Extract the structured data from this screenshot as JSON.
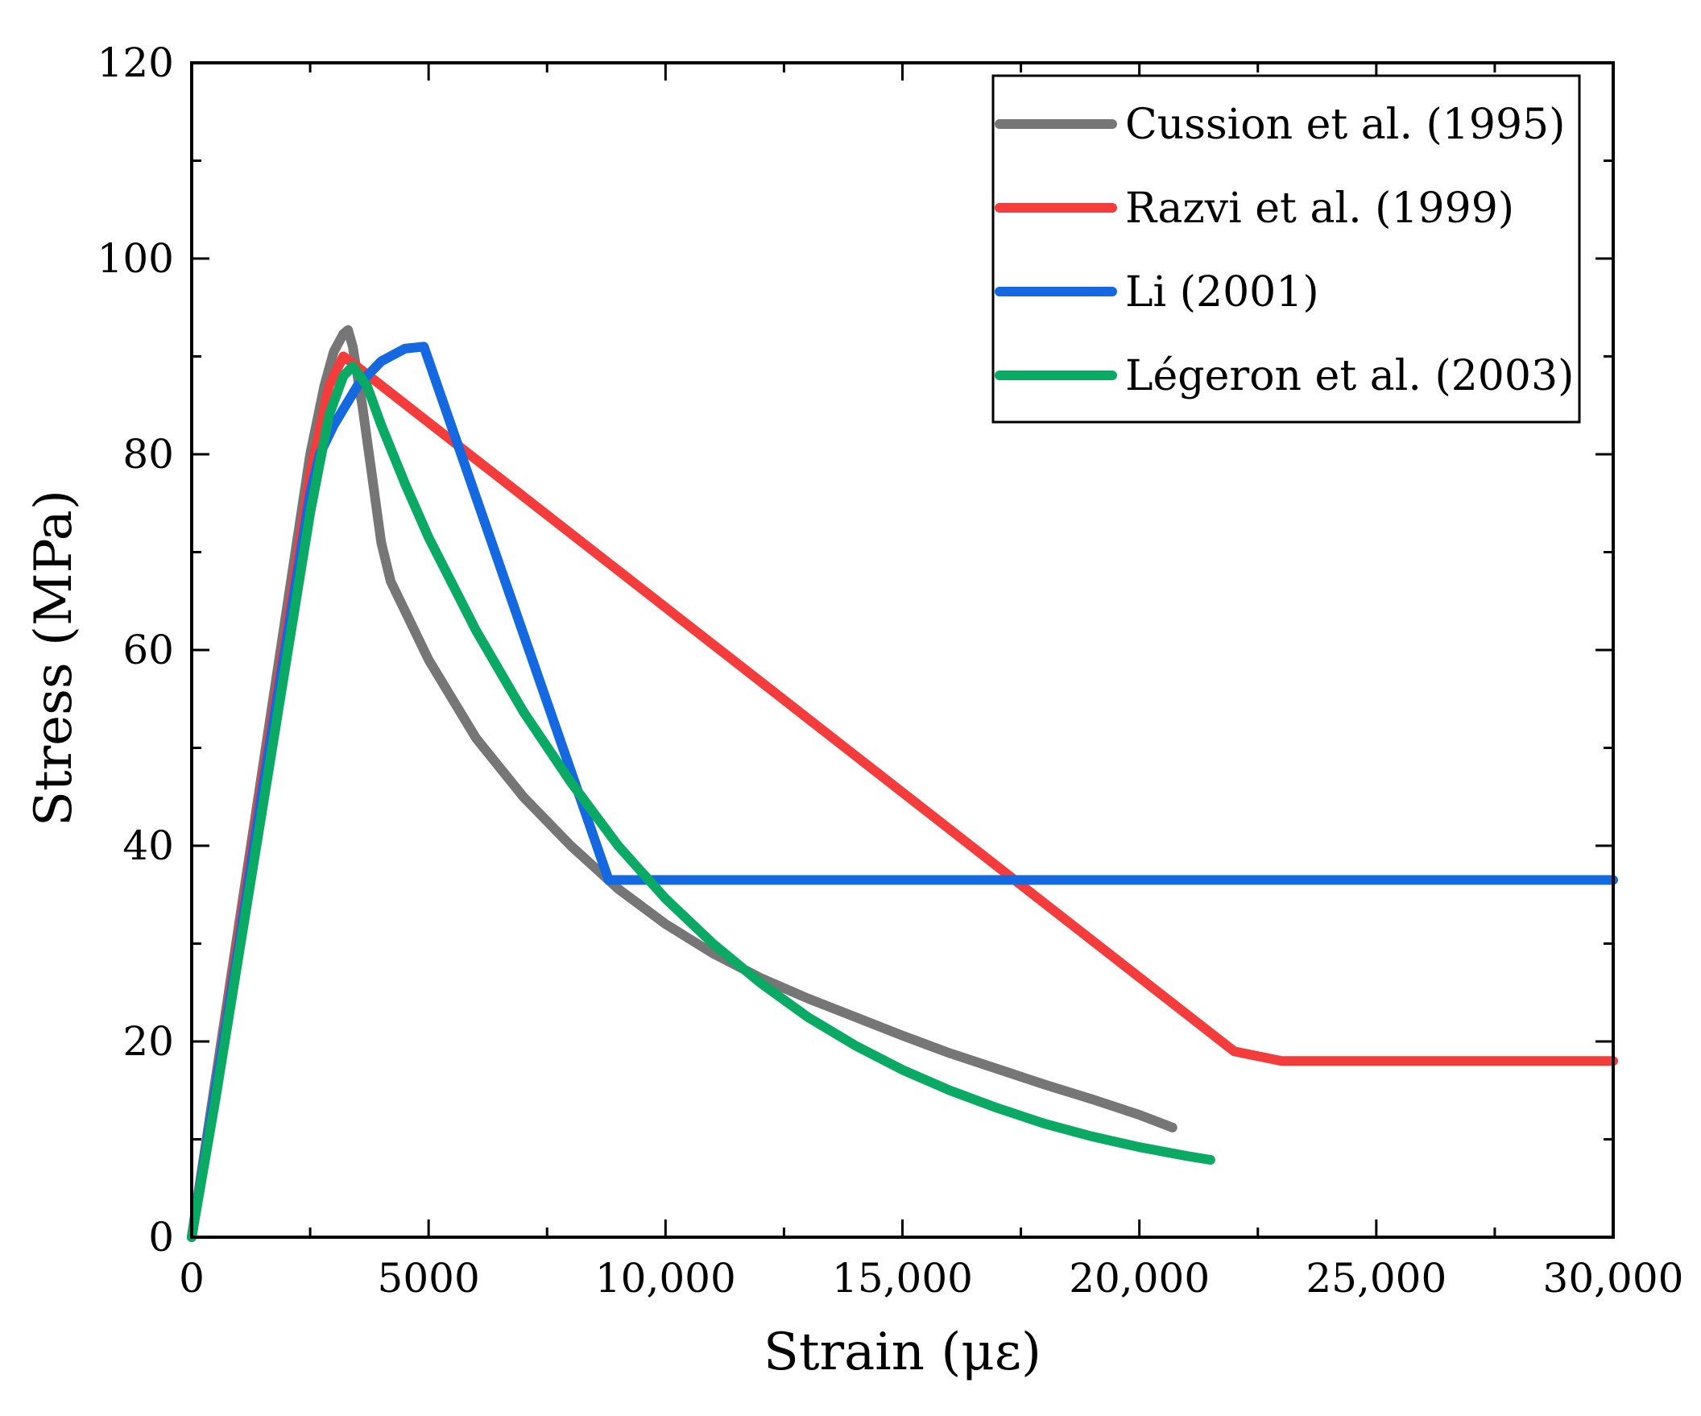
{
  "chart_data": {
    "type": "line",
    "title": "",
    "xlabel": "Strain (με)",
    "ylabel": "Stress (MPa)",
    "xlim": [
      0,
      30000
    ],
    "ylim": [
      0,
      120
    ],
    "x_ticks": [
      0,
      5000,
      10000,
      15000,
      20000,
      25000,
      30000
    ],
    "x_tick_labels": [
      "0",
      "5000",
      "10,000",
      "15,000",
      "20,000",
      "25,000",
      "30,000"
    ],
    "y_ticks": [
      0,
      20,
      40,
      60,
      80,
      100,
      120
    ],
    "y_tick_labels": [
      "0",
      "20",
      "40",
      "60",
      "80",
      "100",
      "120"
    ],
    "grid": false,
    "legend_position": "top-right",
    "series": [
      {
        "name": "Cussion et al. (1995)",
        "color": "#767676",
        "x": [
          0,
          500,
          1000,
          1500,
          2000,
          2500,
          2800,
          3000,
          3200,
          3300,
          3400,
          3600,
          3800,
          4000,
          4200,
          4500,
          5000,
          6000,
          7000,
          8000,
          8500,
          9000,
          10000,
          11000,
          12000,
          13000,
          14000,
          15000,
          16000,
          17000,
          18000,
          19000,
          20000,
          20700
        ],
        "y": [
          0,
          16,
          32,
          48,
          64,
          80,
          87,
          90.5,
          92.3,
          92.7,
          91,
          85,
          78,
          71,
          67,
          64,
          59,
          51,
          45,
          40,
          37.8,
          35.6,
          32,
          29,
          26.5,
          24.4,
          22.5,
          20.6,
          18.8,
          17.2,
          15.6,
          14.1,
          12.5,
          11.2
        ]
      },
      {
        "name": "Razvi et al. (1999)",
        "color": "#F53C3C",
        "x": [
          0,
          500,
          1000,
          1500,
          2000,
          2500,
          2900,
          3200,
          3400,
          22000,
          23000,
          30000
        ],
        "y": [
          0,
          15,
          31,
          47,
          62,
          78,
          87,
          90,
          89.3,
          19,
          18,
          18
        ]
      },
      {
        "name": "Li (2001)",
        "color": "#1469E0",
        "x": [
          0,
          500,
          1000,
          1500,
          2000,
          2500,
          2700,
          3000,
          3500,
          4000,
          4500,
          4900,
          8800,
          30000
        ],
        "y": [
          0,
          15,
          30,
          46,
          61,
          76,
          80,
          83,
          87,
          89.5,
          90.8,
          91,
          36.5,
          36.5
        ]
      },
      {
        "name": "Légeron et al. (2003)",
        "color": "#0AAA64",
        "x": [
          0,
          500,
          1000,
          1500,
          2000,
          2500,
          2900,
          3200,
          3400,
          3700,
          4000,
          4500,
          5000,
          6000,
          7000,
          8000,
          9000,
          10000,
          11000,
          12000,
          13000,
          14000,
          15000,
          16000,
          17000,
          18000,
          19000,
          20000,
          21000,
          21500
        ],
        "y": [
          0,
          14,
          29,
          44,
          59,
          74,
          84,
          88,
          89,
          87,
          83,
          77,
          71.5,
          62,
          53.7,
          46.5,
          40,
          34.6,
          30,
          26,
          22.5,
          19.6,
          17.1,
          15,
          13.2,
          11.6,
          10.3,
          9.2,
          8.3,
          7.9
        ]
      }
    ]
  }
}
